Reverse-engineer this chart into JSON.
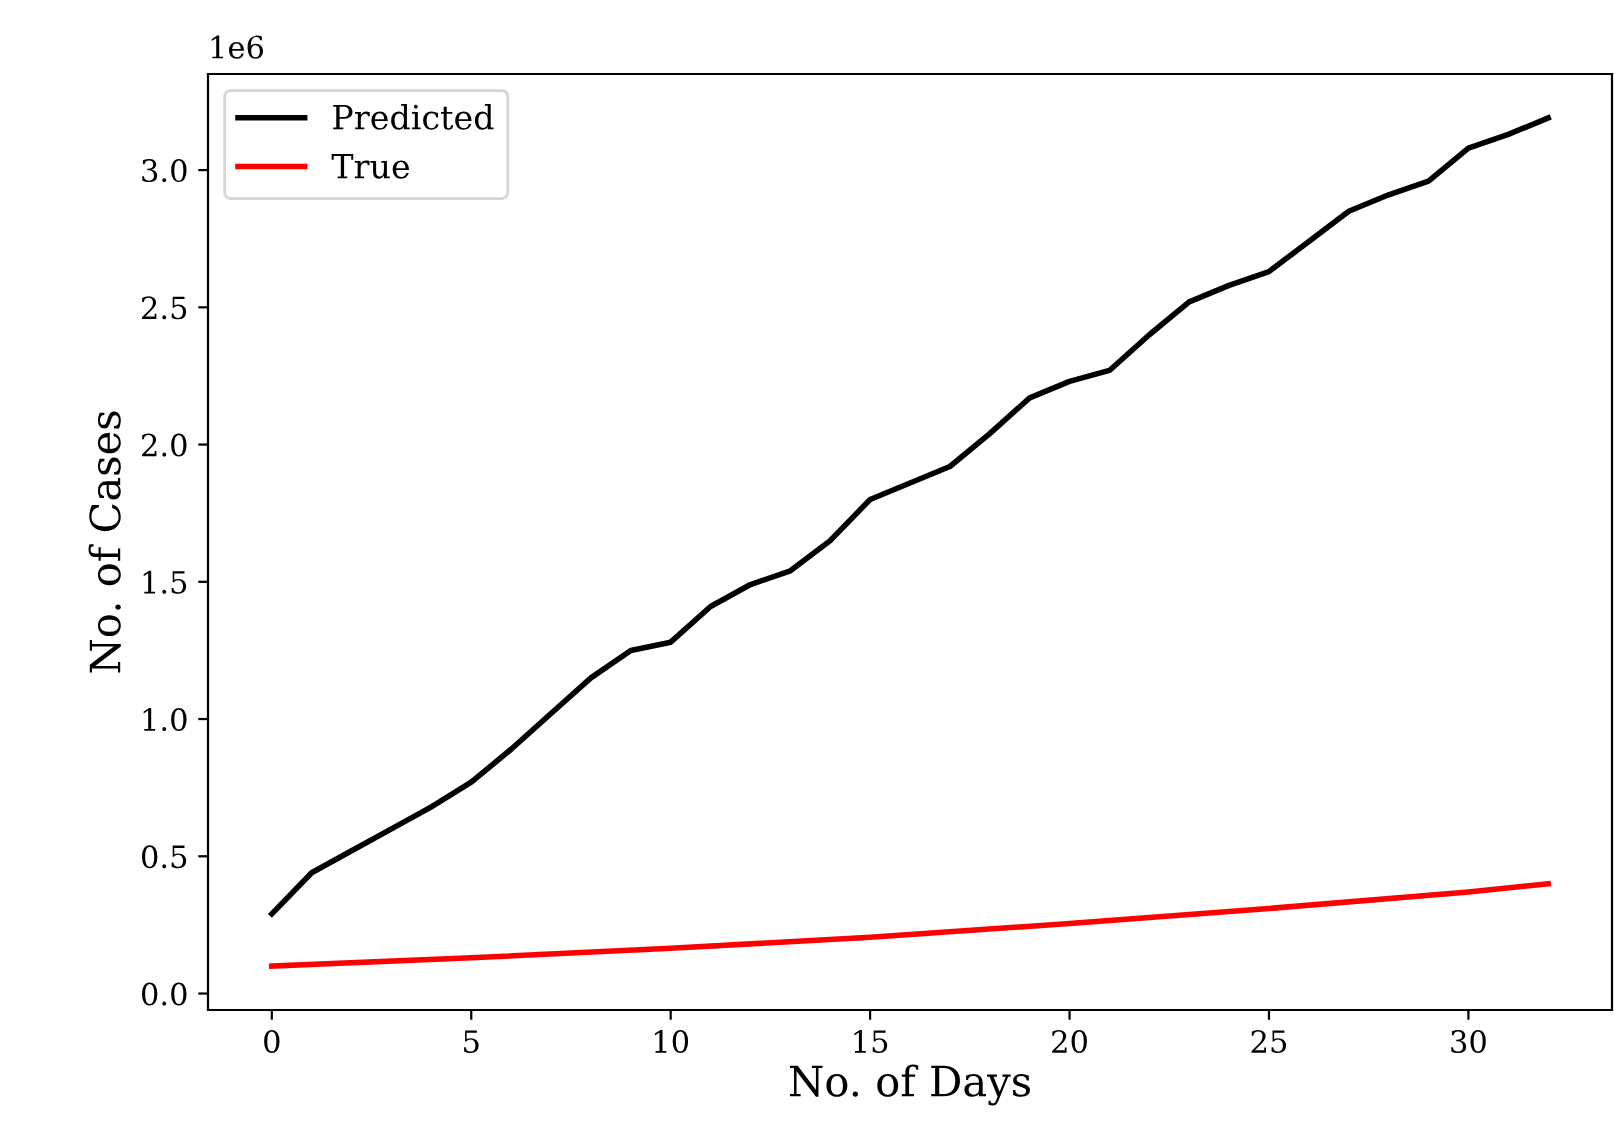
{
  "chart_data": {
    "type": "line",
    "xlabel": "No. of Days",
    "ylabel": "No. of Cases",
    "x": [
      0,
      1,
      2,
      3,
      4,
      5,
      6,
      7,
      8,
      9,
      10,
      11,
      12,
      13,
      14,
      15,
      16,
      17,
      18,
      19,
      20,
      21,
      22,
      23,
      24,
      25,
      26,
      27,
      28,
      29,
      30,
      31,
      32
    ],
    "series": [
      {
        "name": "Predicted",
        "color": "#000000",
        "values": [
          0.29,
          0.44,
          0.52,
          0.6,
          0.68,
          0.77,
          0.89,
          1.02,
          1.15,
          1.25,
          1.28,
          1.41,
          1.49,
          1.54,
          1.65,
          1.8,
          1.86,
          1.92,
          2.04,
          2.17,
          2.23,
          2.27,
          2.4,
          2.52,
          2.58,
          2.63,
          2.74,
          2.85,
          2.91,
          2.96,
          3.08,
          3.13,
          3.19
        ]
      },
      {
        "name": "True",
        "color": "#ff0000",
        "x": [
          0,
          5,
          10,
          15,
          20,
          25,
          30,
          32
        ],
        "values": [
          0.1,
          0.13,
          0.165,
          0.205,
          0.255,
          0.31,
          0.37,
          0.4
        ]
      }
    ],
    "xlim": [
      -1.6,
      33.6
    ],
    "ylim": [
      -0.06,
      3.35
    ],
    "xticks": [
      0,
      5,
      10,
      15,
      20,
      25,
      30
    ],
    "yticks": [
      {
        "value": 0,
        "label": "0.0"
      },
      0.5,
      {
        "value": 1,
        "label": "1.0"
      },
      1.5,
      {
        "value": 2,
        "label": "2.0"
      },
      2.5,
      {
        "value": 3,
        "label": "3.0"
      }
    ],
    "annotations": [
      "1e6"
    ],
    "legend": "top left",
    "grid": false
  }
}
